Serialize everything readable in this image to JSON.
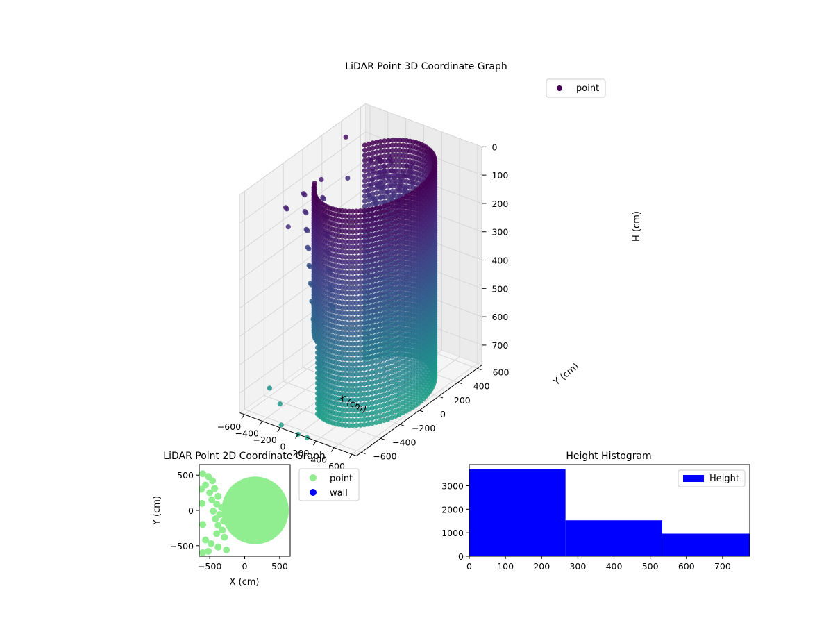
{
  "chart_data": [
    {
      "type": "scatter",
      "title": "LiDAR Point 3D Coordinate Graph",
      "xlabel": "X (cm)",
      "ylabel": "Y (cm)",
      "zlabel": "H (cm)",
      "x_ticks": [
        "−600",
        "−400",
        "−200",
        "0",
        "200",
        "400",
        "600"
      ],
      "y_ticks": [
        "−600",
        "−400",
        "−200",
        "0",
        "200",
        "400",
        "600"
      ],
      "z_ticks": [
        "0",
        "100",
        "200",
        "300",
        "400",
        "500",
        "600",
        "700"
      ],
      "xlim": [
        -650,
        650
      ],
      "ylim": [
        -650,
        650
      ],
      "zlim": [
        0,
        770
      ],
      "z_inverted": true,
      "legend": {
        "entries": [
          "point"
        ],
        "placement": "upper-right"
      },
      "colormap": "viridis",
      "cylinder": {
        "center_x": 150,
        "center_y": 0,
        "radius": 460,
        "h_min": 0,
        "h_max": 770
      },
      "description_series": [
        {
          "name": "point",
          "outliers": [
            [
              -600,
              400,
              50
            ],
            [
              -600,
              420,
              200
            ],
            [
              -480,
              -500,
              700
            ],
            [
              -300,
              -560,
              720
            ],
            [
              100,
              -650,
              770
            ],
            [
              0,
              -650,
              770
            ],
            [
              -220,
              -620,
              770
            ]
          ]
        }
      ]
    },
    {
      "type": "scatter",
      "title": "LiDAR Point 2D Coordinate Graph",
      "xlabel": "X (cm)",
      "ylabel": "Y (cm)",
      "x_ticks": [
        "−500",
        "0",
        "500"
      ],
      "y_ticks": [
        "500",
        "0",
        "−500"
      ],
      "xlim": [
        -650,
        650
      ],
      "ylim": [
        -650,
        650
      ],
      "legend": {
        "entries": [
          "point",
          "wall"
        ],
        "placement": "outside-right"
      },
      "series": [
        {
          "name": "point",
          "color": "#90ee90"
        },
        {
          "name": "wall",
          "color": "#0000ff"
        }
      ]
    },
    {
      "type": "bar",
      "title": "Height Histogram",
      "x_ticks": [
        "0",
        "100",
        "200",
        "300",
        "400",
        "500",
        "600",
        "700"
      ],
      "y_ticks": [
        "0",
        "1000",
        "2000",
        "3000"
      ],
      "xlim": [
        0,
        775
      ],
      "ylim": [
        0,
        3900
      ],
      "bins": [
        [
          0,
          266,
          3700
        ],
        [
          266,
          533,
          1530
        ],
        [
          533,
          775,
          960
        ]
      ],
      "legend": {
        "entries": [
          "Height"
        ],
        "placement": "upper-right"
      },
      "series": [
        {
          "name": "Height",
          "color": "#0000ff"
        }
      ]
    }
  ]
}
